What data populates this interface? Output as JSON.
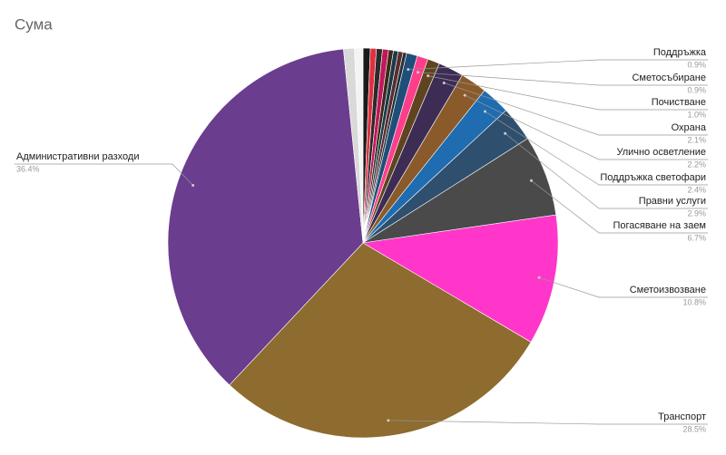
{
  "chart_data": {
    "type": "pie",
    "title": "Сума",
    "categories": [
      null,
      null,
      null,
      null,
      null,
      null,
      null,
      null,
      "Поддръжка",
      "Сметосъбиране",
      "Почистване",
      "Охрана",
      "Улично осветление",
      "Поддръжка светофари",
      "Правни услуги",
      "Погасяване на заем",
      "Сметоизвозване",
      "Транспорт",
      "Административни разходи",
      null,
      null
    ],
    "values": [
      0.6,
      0.5,
      0.5,
      0.5,
      0.4,
      0.4,
      0.4,
      0.3,
      0.9,
      0.9,
      1.0,
      2.1,
      2.2,
      2.4,
      2.9,
      6.7,
      10.8,
      28.5,
      36.4,
      0.9,
      0.7
    ],
    "value_labels": [
      null,
      null,
      null,
      null,
      null,
      null,
      null,
      null,
      "0.9%",
      "0.9%",
      "1.0%",
      "2.1%",
      "2.2%",
      "2.4%",
      "2.9%",
      "6.7%",
      "10.8%",
      "28.5%",
      "36.4%",
      null,
      null
    ],
    "colors": [
      "#1a1a1a",
      "#e0303f",
      "#2b2b2b",
      "#c2185b",
      "#3b2a1a",
      "#1c3a4a",
      "#5a2d2d",
      "#263238",
      "#1e4f7a",
      "#ff3d8b",
      "#5e4520",
      "#3d2d55",
      "#8a5a2a",
      "#1f6cb0",
      "#2f4f6f",
      "#4a4a4a",
      "#ff36c9",
      "#8e6b2e",
      "#6a3d8f",
      "#d9d9d9",
      "#f4f4f4"
    ]
  }
}
